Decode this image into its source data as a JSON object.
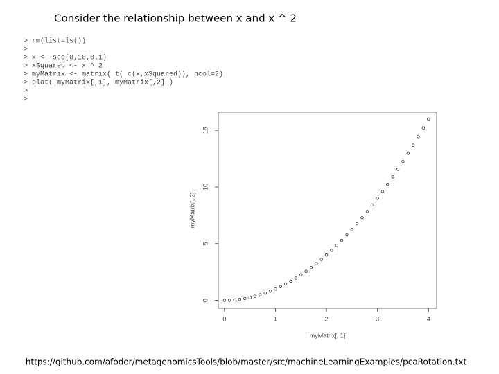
{
  "title": "Consider the relationship between x and x ^ 2",
  "code": [
    "> rm(list=ls())",
    ">",
    "> x <- seq(0,10,0.1)",
    "> xSquared <- x ^ 2",
    "> myMatrix <- matrix( t( c(x,xSquared)), ncol=2)",
    "> plot( myMatrix[,1], myMatrix[,2] )",
    ">",
    ">"
  ],
  "chart_data": {
    "type": "scatter",
    "x": [
      0,
      0.1,
      0.2,
      0.3,
      0.4,
      0.5,
      0.6,
      0.7,
      0.8,
      0.9,
      1,
      1.1,
      1.2,
      1.3,
      1.4,
      1.5,
      1.6,
      1.7,
      1.8,
      1.9,
      2,
      2.1,
      2.2,
      2.3,
      2.4,
      2.5,
      2.6,
      2.7,
      2.8,
      2.9,
      3,
      3.1,
      3.2,
      3.3,
      3.4,
      3.5,
      3.6,
      3.7,
      3.8,
      3.9,
      4
    ],
    "values": [
      0,
      0.01,
      0.04,
      0.09,
      0.16,
      0.25,
      0.36,
      0.49,
      0.64,
      0.81,
      1,
      1.21,
      1.44,
      1.69,
      1.96,
      2.25,
      2.56,
      2.89,
      3.24,
      3.61,
      4,
      4.41,
      4.84,
      5.29,
      5.76,
      6.25,
      6.76,
      7.29,
      7.84,
      8.41,
      9,
      9.61,
      10.24,
      10.89,
      11.56,
      12.25,
      12.96,
      13.69,
      14.44,
      15.21,
      16
    ],
    "color": "#333333",
    "xlabel": "myMatrix[, 1]",
    "ylabel": "myMatrix[, 2]",
    "xlim": [
      -0.12,
      4.16
    ],
    "ylim": [
      -0.7,
      16.6
    ],
    "xticks": [
      0,
      1,
      2,
      3,
      4
    ],
    "yticks": [
      0,
      5,
      10,
      15
    ]
  },
  "footer": "https://github.com/afodor/metagenomicsTools/blob/master/src/machineLearningExamples/pcaRotation.txt"
}
